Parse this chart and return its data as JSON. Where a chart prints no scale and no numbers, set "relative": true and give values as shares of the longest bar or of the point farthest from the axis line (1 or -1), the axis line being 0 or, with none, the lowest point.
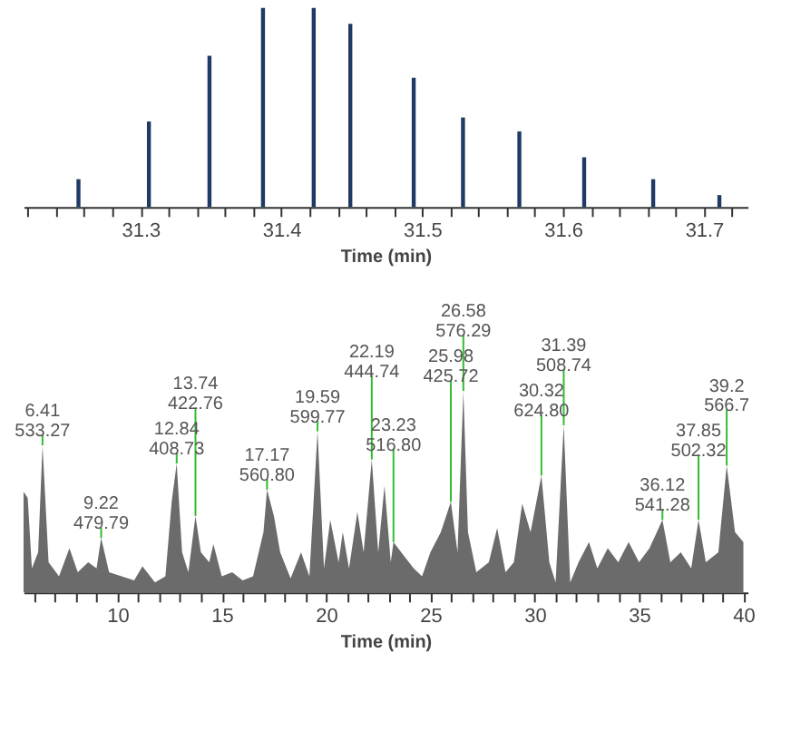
{
  "chart_data": [
    {
      "type": "bar",
      "relative": true,
      "xlabel": "Time (min)",
      "grid": false,
      "legend": false,
      "x": [
        31.256,
        31.306,
        31.349,
        31.387,
        31.423,
        31.449,
        31.494,
        31.529,
        31.569,
        31.615,
        31.664,
        31.711
      ],
      "series": [
        {
          "color": "#1f3a64",
          "values": [
            0.14,
            0.43,
            0.76,
            1.0,
            1.0,
            0.92,
            0.65,
            0.45,
            0.38,
            0.25,
            0.14,
            0.06
          ]
        }
      ],
      "xlim": [
        31.217,
        31.731
      ],
      "xticks": [
        {
          "value": 31.22,
          "label": null
        },
        {
          "value": 31.24,
          "label": null
        },
        {
          "value": 31.26,
          "label": null
        },
        {
          "value": 31.28,
          "label": null
        },
        31.3,
        {
          "value": 31.32,
          "label": null
        },
        {
          "value": 31.34,
          "label": null
        },
        {
          "value": 31.36,
          "label": null
        },
        {
          "value": 31.38,
          "label": null
        },
        31.4,
        {
          "value": 31.42,
          "label": null
        },
        {
          "value": 31.44,
          "label": null
        },
        {
          "value": 31.46,
          "label": null
        },
        {
          "value": 31.48,
          "label": null
        },
        31.5,
        {
          "value": 31.52,
          "label": null
        },
        {
          "value": 31.54,
          "label": null
        },
        {
          "value": 31.56,
          "label": null
        },
        {
          "value": 31.58,
          "label": null
        },
        31.6,
        {
          "value": 31.62,
          "label": null
        },
        {
          "value": 31.64,
          "label": null
        },
        {
          "value": 31.66,
          "label": null
        },
        {
          "value": 31.68,
          "label": null
        },
        31.7,
        {
          "value": 31.72,
          "label": null
        }
      ]
    },
    {
      "type": "area",
      "relative": true,
      "xlabel": "Time (min)",
      "grid": false,
      "legend": false,
      "x": [
        5.5,
        5.7,
        5.9,
        6.2,
        6.41,
        6.7,
        7.2,
        7.7,
        8.1,
        8.6,
        9.0,
        9.22,
        9.6,
        10.2,
        10.8,
        11.2,
        11.8,
        12.3,
        12.6,
        12.84,
        13.1,
        13.4,
        13.74,
        14.0,
        14.4,
        14.6,
        15.0,
        15.5,
        16.0,
        16.5,
        17.0,
        17.17,
        17.5,
        17.8,
        18.3,
        18.8,
        19.2,
        19.59,
        19.9,
        20.2,
        20.6,
        20.8,
        21.1,
        21.5,
        21.8,
        22.19,
        22.5,
        22.8,
        23.1,
        23.23,
        23.6,
        24.2,
        24.6,
        25.0,
        25.5,
        25.98,
        26.3,
        26.58,
        26.8,
        27.2,
        27.8,
        28.2,
        28.6,
        29.0,
        29.4,
        29.8,
        30.32,
        30.7,
        31.0,
        31.39,
        31.7,
        32.1,
        32.6,
        33.0,
        33.5,
        34.0,
        34.5,
        35.0,
        35.5,
        36.12,
        36.5,
        37.0,
        37.5,
        37.85,
        38.2,
        38.8,
        39.2,
        39.6,
        40.0
      ],
      "series": [
        {
          "color": "#6b6b6b",
          "values": [
            0.5,
            0.47,
            0.12,
            0.2,
            0.73,
            0.15,
            0.08,
            0.22,
            0.1,
            0.15,
            0.12,
            0.27,
            0.1,
            0.08,
            0.06,
            0.13,
            0.05,
            0.08,
            0.45,
            0.64,
            0.2,
            0.1,
            0.38,
            0.2,
            0.15,
            0.24,
            0.08,
            0.1,
            0.06,
            0.08,
            0.3,
            0.51,
            0.38,
            0.2,
            0.07,
            0.2,
            0.08,
            0.8,
            0.12,
            0.36,
            0.15,
            0.3,
            0.12,
            0.4,
            0.2,
            0.66,
            0.2,
            0.53,
            0.15,
            0.25,
            0.2,
            0.12,
            0.08,
            0.2,
            0.3,
            0.45,
            0.2,
            1.0,
            0.3,
            0.1,
            0.15,
            0.32,
            0.1,
            0.15,
            0.44,
            0.3,
            0.58,
            0.15,
            0.05,
            0.83,
            0.05,
            0.15,
            0.25,
            0.12,
            0.22,
            0.15,
            0.25,
            0.15,
            0.22,
            0.36,
            0.15,
            0.2,
            0.12,
            0.36,
            0.15,
            0.2,
            0.63,
            0.3,
            0.25
          ]
        }
      ],
      "xlim": [
        5.5,
        40.2
      ],
      "xticks": [
        {
          "value": 6,
          "label": null
        },
        {
          "value": 7,
          "label": null
        },
        {
          "value": 8,
          "label": null
        },
        {
          "value": 9,
          "label": null
        },
        10,
        {
          "value": 11,
          "label": null
        },
        {
          "value": 12,
          "label": null
        },
        {
          "value": 13,
          "label": null
        },
        {
          "value": 14,
          "label": null
        },
        15,
        {
          "value": 16,
          "label": null
        },
        {
          "value": 17,
          "label": null
        },
        {
          "value": 18,
          "label": null
        },
        {
          "value": 19,
          "label": null
        },
        20,
        {
          "value": 21,
          "label": null
        },
        {
          "value": 22,
          "label": null
        },
        {
          "value": 23,
          "label": null
        },
        {
          "value": 24,
          "label": null
        },
        25,
        {
          "value": 26,
          "label": null
        },
        {
          "value": 27,
          "label": null
        },
        {
          "value": 28,
          "label": null
        },
        {
          "value": 29,
          "label": null
        },
        30,
        {
          "value": 31,
          "label": null
        },
        {
          "value": 32,
          "label": null
        },
        {
          "value": 33,
          "label": null
        },
        {
          "value": 34,
          "label": null
        },
        35,
        {
          "value": 36,
          "label": null
        },
        {
          "value": 37,
          "label": null
        },
        {
          "value": 38,
          "label": null
        },
        {
          "value": 39,
          "label": null
        },
        40
      ],
      "annotations": [
        {
          "text": "6.41\n533.27",
          "x": 6.41,
          "y": 0.73
        },
        {
          "text": "9.22\n479.79",
          "x": 9.22,
          "y": 0.27
        },
        {
          "text": "12.84\n408.73",
          "x": 12.84,
          "y": 0.64
        },
        {
          "text": "13.74\n422.76",
          "x": 13.74,
          "y": 0.38
        },
        {
          "text": "17.17\n560.80",
          "x": 17.17,
          "y": 0.51
        },
        {
          "text": "19.59\n599.77",
          "x": 19.59,
          "y": 0.8
        },
        {
          "text": "22.19\n444.74",
          "x": 22.19,
          "y": 0.66
        },
        {
          "text": "23.23\n516.80",
          "x": 23.23,
          "y": 0.25
        },
        {
          "text": "25.98\n425.72",
          "x": 25.98,
          "y": 0.45
        },
        {
          "text": "26.58\n576.29",
          "x": 26.58,
          "y": 1.0
        },
        {
          "text": "30.32\n624.80",
          "x": 30.32,
          "y": 0.58
        },
        {
          "text": "31.39\n508.74",
          "x": 31.39,
          "y": 0.83
        },
        {
          "text": "36.12\n541.28",
          "x": 36.12,
          "y": 0.36
        },
        {
          "text": "37.85\n502.32",
          "x": 37.85,
          "y": 0.36
        },
        {
          "text": "39.2\n566.7",
          "x": 39.2,
          "y": 0.63
        }
      ]
    }
  ]
}
